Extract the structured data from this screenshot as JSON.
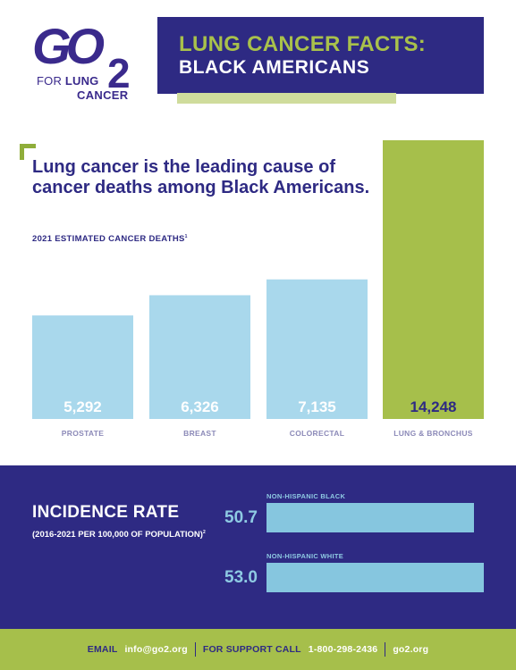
{
  "logo": {
    "go": "GO",
    "two": "2",
    "for": "FOR",
    "lung": "LUNG",
    "cancer": "CANCER"
  },
  "header": {
    "title_line1": "LUNG CANCER FACTS:",
    "title_line2": "BLACK AMERICANS"
  },
  "headline": "Lung cancer is the leading cause of cancer deaths among Black Americans.",
  "chart_data": [
    {
      "type": "bar",
      "title": "2021 ESTIMATED CANCER DEATHS",
      "title_footnote": "1",
      "categories": [
        "PROSTATE",
        "BREAST",
        "COLORECTAL",
        "LUNG & BRONCHUS"
      ],
      "values": [
        5292,
        6326,
        7135,
        14248
      ],
      "value_labels": [
        "5,292",
        "6,326",
        "7,135",
        "14,248"
      ],
      "colors": [
        "#a9d8ec",
        "#a9d8ec",
        "#a9d8ec",
        "#a6bf4b"
      ],
      "value_label_colors": [
        "#ffffff",
        "#ffffff",
        "#ffffff",
        "#2e2a83"
      ],
      "xlabel": "",
      "ylabel": "",
      "ylim": [
        0,
        14248
      ],
      "grid": false
    },
    {
      "type": "bar",
      "orientation": "horizontal",
      "title": "INCIDENCE RATE",
      "subtitle": "(2016-2021 PER 100,000 OF POPULATION)",
      "subtitle_footnote": "2",
      "categories": [
        "NON-HISPANIC BLACK",
        "NON-HISPANIC WHITE"
      ],
      "values": [
        50.7,
        53.0
      ],
      "value_labels": [
        "50.7",
        "53.0"
      ],
      "xlabel": "",
      "ylabel": "",
      "xlim": [
        0,
        53.0
      ],
      "grid": false
    }
  ],
  "footer": {
    "email_label": "EMAIL",
    "email": "info@go2.org",
    "support_label": "FOR SUPPORT CALL",
    "phone": "1-800-298-2436",
    "site": "go2.org"
  },
  "colors": {
    "navy": "#2e2a83",
    "green": "#a6bf4b",
    "light_blue": "#a9d8ec"
  }
}
